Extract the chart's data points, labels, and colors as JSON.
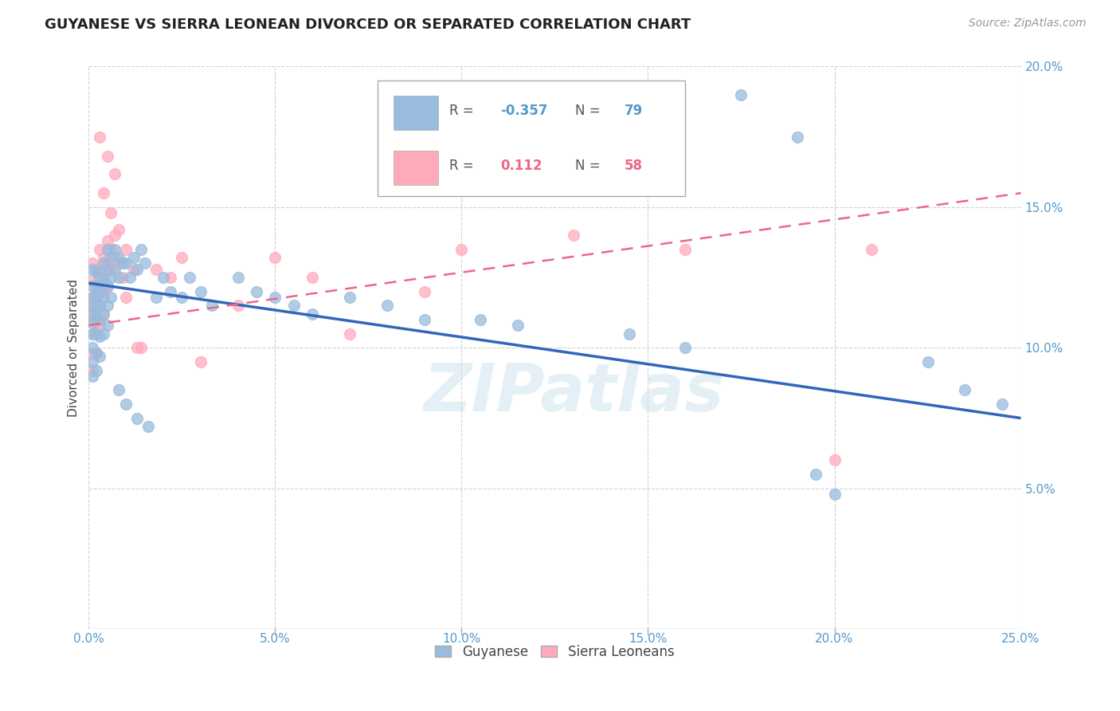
{
  "title": "GUYANESE VS SIERRA LEONEAN DIVORCED OR SEPARATED CORRELATION CHART",
  "source_text": "Source: ZipAtlas.com",
  "ylabel": "Divorced or Separated",
  "xlim": [
    0.0,
    0.25
  ],
  "ylim": [
    0.0,
    0.2
  ],
  "xticks": [
    0.0,
    0.05,
    0.1,
    0.15,
    0.2,
    0.25
  ],
  "yticks": [
    0.0,
    0.05,
    0.1,
    0.15,
    0.2
  ],
  "xtick_labels": [
    "0.0%",
    "5.0%",
    "10.0%",
    "15.0%",
    "20.0%",
    "25.0%"
  ],
  "ytick_labels": [
    "",
    "5.0%",
    "10.0%",
    "15.0%",
    "20.0%"
  ],
  "blue_color": "#99BBDD",
  "pink_color": "#FFAABB",
  "blue_line_color": "#3366BB",
  "pink_line_color": "#EE6688",
  "blue_trend_x": [
    0.0,
    0.25
  ],
  "blue_trend_y": [
    0.123,
    0.075
  ],
  "pink_trend_x": [
    0.0,
    0.1
  ],
  "pink_trend_y": [
    0.108,
    0.13
  ],
  "legend_label_blue": "Guyanese",
  "legend_label_pink": "Sierra Leoneans",
  "blue_points_x": [
    0.001,
    0.001,
    0.001,
    0.001,
    0.001,
    0.001,
    0.001,
    0.001,
    0.001,
    0.001,
    0.002,
    0.002,
    0.002,
    0.002,
    0.002,
    0.002,
    0.002,
    0.002,
    0.003,
    0.003,
    0.003,
    0.003,
    0.003,
    0.003,
    0.004,
    0.004,
    0.004,
    0.004,
    0.004,
    0.005,
    0.005,
    0.005,
    0.005,
    0.005,
    0.006,
    0.006,
    0.006,
    0.007,
    0.007,
    0.008,
    0.008,
    0.009,
    0.01,
    0.011,
    0.012,
    0.013,
    0.014,
    0.015,
    0.018,
    0.02,
    0.022,
    0.025,
    0.027,
    0.03,
    0.033,
    0.04,
    0.045,
    0.05,
    0.055,
    0.06,
    0.07,
    0.08,
    0.09,
    0.105,
    0.115,
    0.145,
    0.16,
    0.175,
    0.19,
    0.195,
    0.2,
    0.225,
    0.235,
    0.245,
    0.008,
    0.01,
    0.013,
    0.016
  ],
  "blue_points_y": [
    0.128,
    0.122,
    0.118,
    0.115,
    0.112,
    0.109,
    0.105,
    0.1,
    0.095,
    0.09,
    0.127,
    0.122,
    0.118,
    0.114,
    0.11,
    0.105,
    0.098,
    0.092,
    0.125,
    0.12,
    0.115,
    0.11,
    0.104,
    0.097,
    0.13,
    0.124,
    0.118,
    0.112,
    0.105,
    0.135,
    0.128,
    0.122,
    0.115,
    0.108,
    0.132,
    0.125,
    0.118,
    0.135,
    0.128,
    0.132,
    0.125,
    0.13,
    0.13,
    0.125,
    0.132,
    0.128,
    0.135,
    0.13,
    0.118,
    0.125,
    0.12,
    0.118,
    0.125,
    0.12,
    0.115,
    0.125,
    0.12,
    0.118,
    0.115,
    0.112,
    0.118,
    0.115,
    0.11,
    0.11,
    0.108,
    0.105,
    0.1,
    0.19,
    0.175,
    0.055,
    0.048,
    0.095,
    0.085,
    0.08,
    0.085,
    0.08,
    0.075,
    0.072
  ],
  "pink_points_x": [
    0.001,
    0.001,
    0.001,
    0.001,
    0.001,
    0.001,
    0.001,
    0.001,
    0.002,
    0.002,
    0.002,
    0.002,
    0.002,
    0.002,
    0.003,
    0.003,
    0.003,
    0.003,
    0.003,
    0.004,
    0.004,
    0.004,
    0.004,
    0.005,
    0.005,
    0.005,
    0.006,
    0.006,
    0.007,
    0.007,
    0.008,
    0.009,
    0.01,
    0.012,
    0.014,
    0.018,
    0.022,
    0.025,
    0.03,
    0.04,
    0.05,
    0.06,
    0.07,
    0.09,
    0.1,
    0.13,
    0.16,
    0.2,
    0.21,
    0.003,
    0.004,
    0.005,
    0.006,
    0.007,
    0.008,
    0.01,
    0.013
  ],
  "pink_points_y": [
    0.13,
    0.124,
    0.118,
    0.114,
    0.11,
    0.105,
    0.098,
    0.092,
    0.128,
    0.122,
    0.118,
    0.112,
    0.106,
    0.098,
    0.135,
    0.128,
    0.122,
    0.115,
    0.108,
    0.132,
    0.126,
    0.12,
    0.112,
    0.138,
    0.13,
    0.122,
    0.135,
    0.128,
    0.14,
    0.132,
    0.13,
    0.125,
    0.135,
    0.128,
    0.1,
    0.128,
    0.125,
    0.132,
    0.095,
    0.115,
    0.132,
    0.125,
    0.105,
    0.12,
    0.135,
    0.14,
    0.135,
    0.06,
    0.135,
    0.175,
    0.155,
    0.168,
    0.148,
    0.162,
    0.142,
    0.118,
    0.1
  ],
  "background_color": "#FFFFFF",
  "title_fontsize": 13,
  "tick_fontsize": 11,
  "source_fontsize": 10
}
